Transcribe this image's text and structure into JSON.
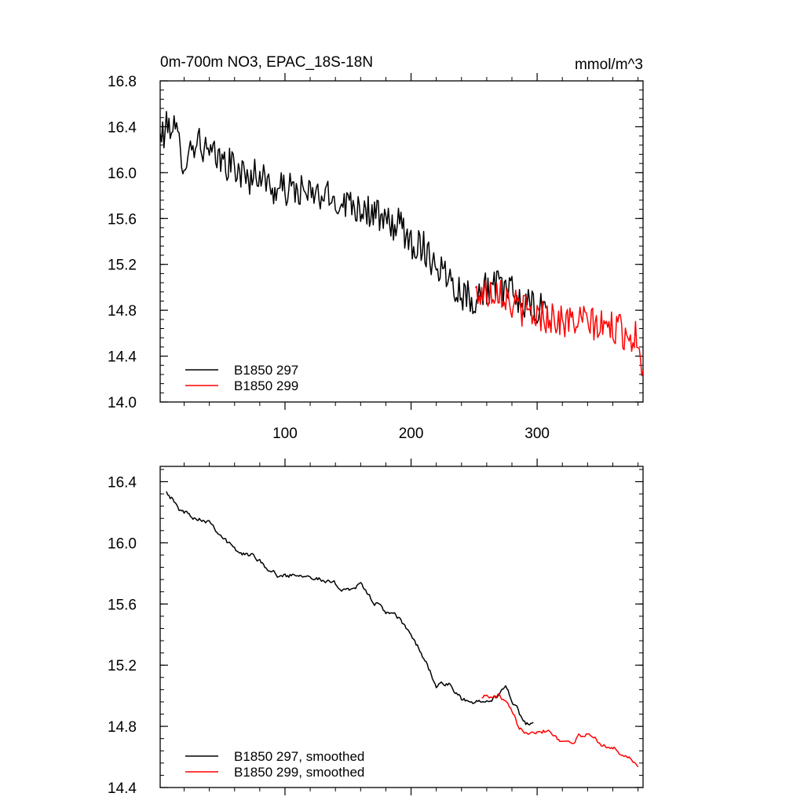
{
  "chart_data": [
    {
      "type": "line",
      "title": "0m-700m NO3, EPAC_18S-18N",
      "units": "mmol/m^3",
      "xlim": [
        1,
        384
      ],
      "ylim": [
        14.0,
        16.8
      ],
      "xticks": [
        100,
        200,
        300
      ],
      "xtick_labels": [
        "100",
        "200",
        "300"
      ],
      "yticks": [
        14.0,
        14.4,
        14.8,
        15.2,
        15.6,
        16.0,
        16.4,
        16.8
      ],
      "ytick_labels": [
        "14.0",
        "14.4",
        "14.8",
        "15.2",
        "15.6",
        "16.0",
        "16.4",
        "16.8"
      ],
      "legend_position": "bottom-left",
      "series": [
        {
          "name": "B1850 297",
          "color": "#000000",
          "x": [
            1,
            10,
            20,
            30,
            40,
            50,
            60,
            70,
            80,
            90,
            100,
            110,
            120,
            130,
            140,
            150,
            160,
            170,
            180,
            190,
            200,
            210,
            220,
            230,
            240,
            250,
            260,
            270,
            280,
            290,
            300,
            307
          ],
          "values": [
            16.3,
            16.45,
            16.1,
            16.3,
            16.15,
            16.1,
            16.05,
            15.95,
            16.0,
            15.85,
            15.85,
            15.85,
            15.8,
            15.8,
            15.75,
            15.75,
            15.7,
            15.65,
            15.55,
            15.55,
            15.4,
            15.35,
            15.2,
            15.1,
            14.95,
            14.9,
            15.0,
            15.0,
            14.95,
            14.85,
            14.8,
            14.8
          ],
          "noise": 0.15
        },
        {
          "name": "B1850 299",
          "color": "#ff0000",
          "x": [
            251,
            260,
            270,
            280,
            290,
            300,
            310,
            320,
            330,
            340,
            350,
            360,
            370,
            380,
            384
          ],
          "values": [
            14.95,
            14.95,
            15.0,
            14.85,
            14.8,
            14.75,
            14.75,
            14.7,
            14.7,
            14.7,
            14.65,
            14.65,
            14.6,
            14.55,
            14.3
          ],
          "noise": 0.15
        }
      ]
    },
    {
      "type": "line",
      "title": "",
      "xlim": [
        1,
        384
      ],
      "ylim": [
        14.4,
        16.5
      ],
      "xticks": [
        100,
        200,
        300
      ],
      "yticks": [
        14.4,
        14.8,
        15.2,
        15.6,
        16.0,
        16.4
      ],
      "ytick_labels": [
        "14.4",
        "14.8",
        "15.2",
        "15.6",
        "16.0",
        "16.4"
      ],
      "legend_position": "bottom-left",
      "series": [
        {
          "name": "B1850 297, smoothed",
          "color": "#000000",
          "x": [
            6,
            10,
            15,
            20,
            30,
            40,
            50,
            60,
            70,
            80,
            90,
            100,
            110,
            120,
            130,
            140,
            150,
            160,
            170,
            180,
            190,
            200,
            210,
            220,
            230,
            240,
            250,
            255,
            260,
            265,
            270,
            275,
            280,
            285,
            290,
            297
          ],
          "values": [
            16.35,
            16.3,
            16.22,
            16.2,
            16.17,
            16.15,
            16.05,
            15.95,
            15.92,
            15.9,
            15.8,
            15.78,
            15.8,
            15.8,
            15.75,
            15.72,
            15.7,
            15.72,
            15.62,
            15.55,
            15.5,
            15.4,
            15.25,
            15.07,
            15.07,
            14.97,
            14.95,
            14.97,
            15.0,
            15.0,
            15.0,
            15.05,
            14.98,
            14.9,
            14.82,
            14.8
          ],
          "noise": 0.015
        },
        {
          "name": "B1850 299, smoothed",
          "color": "#ff0000",
          "x": [
            256,
            260,
            265,
            270,
            275,
            280,
            285,
            290,
            300,
            310,
            320,
            330,
            340,
            350,
            360,
            370,
            375,
            380
          ],
          "values": [
            15.0,
            15.0,
            14.98,
            15.0,
            14.95,
            14.88,
            14.8,
            14.78,
            14.78,
            14.78,
            14.7,
            14.72,
            14.75,
            14.7,
            14.65,
            14.62,
            14.57,
            14.55
          ],
          "noise": 0.015
        }
      ]
    }
  ]
}
